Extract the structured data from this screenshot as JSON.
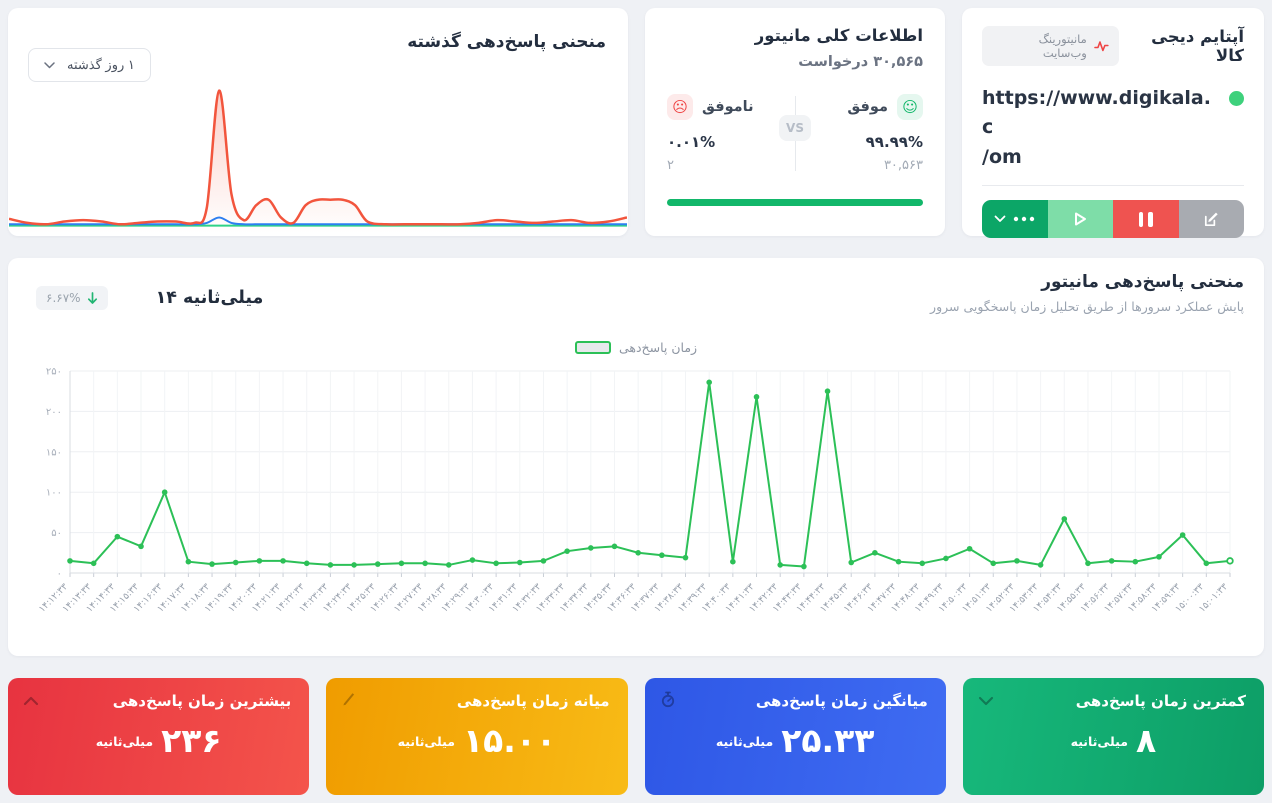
{
  "monitor_card": {
    "title": "آپتایم دیجی کالا",
    "badge_label": "مانیتورینگ وب‌سایت",
    "url_line1": "https://www.digikala.c",
    "url_line2": "/om",
    "status_color": "#3ed17c"
  },
  "overview_card": {
    "title": "اطلاعات کلی مانیتور",
    "subtitle": "۳۰,۵۶۵ درخواست",
    "success_label": "موفق",
    "success_percent": "۹۹.۹۹%",
    "success_count": "۳۰,۵۶۳",
    "failed_label": "ناموفق",
    "failed_percent": "۰.۰۱%",
    "failed_count": "۲",
    "vs_label": "VS",
    "bar_color": "#12b76a"
  },
  "history_card": {
    "title": "منحنی پاسخ‌دهی گذشته",
    "range_selector_label": "۱ روز گذشته"
  },
  "response_card": {
    "title": "منحنی پاسخ‌دهی مانیتور",
    "subtitle": "پایش عملکرد سرورها از طریق تحلیل زمان پاسخگویی سرور",
    "current_value": "۱۴ میلی‌ثانیه",
    "change_percent": "۶.۶۷%",
    "legend_label": "زمان پاسخ‌دهی"
  },
  "icons": {
    "smiley": "☺",
    "frown": "☹"
  },
  "stats_cards": [
    {
      "title": "کمترین زمان پاسخ‌دهی",
      "value": "۸",
      "unit": "میلی‌ثانیه",
      "icon": "chevron-down",
      "gradient": [
        "#17b87b",
        "#0d9e66"
      ]
    },
    {
      "title": "میانگین زمان پاسخ‌دهی",
      "value": "۲۵.۳۳",
      "unit": "میلی‌ثانیه",
      "icon": "stopwatch",
      "gradient": [
        "#2e57e6",
        "#3f6cf2"
      ]
    },
    {
      "title": "میانه زمان پاسخ‌دهی",
      "value": "۱۵.۰۰",
      "unit": "میلی‌ثانیه",
      "icon": "pencil",
      "gradient": [
        "#f09c00",
        "#f8bb16"
      ]
    },
    {
      "title": "بیشترین زمان پاسخ‌دهی",
      "value": "۲۳۶",
      "unit": "میلی‌ثانیه",
      "icon": "chevron-up",
      "gradient": [
        "#e73340",
        "#f4544b"
      ]
    }
  ],
  "chart_data": [
    {
      "name": "monitor-response-chart",
      "type": "line",
      "title": "منحنی پاسخ‌دهی مانیتور",
      "legend": [
        "زمان پاسخ‌دهی"
      ],
      "legend_position": "top-center",
      "grid": true,
      "xlabel": "",
      "ylabel": "",
      "ylim": [
        0,
        250
      ],
      "yticks": [
        0,
        50,
        100,
        150,
        200,
        250
      ],
      "line_color": "#2cc057",
      "x": [
        "۱۴:۱۲:۳۳",
        "۱۴:۱۳:۳۳",
        "۱۴:۱۴:۳۳",
        "۱۴:۱۵:۳۳",
        "۱۴:۱۶:۳۳",
        "۱۴:۱۷:۳۳",
        "۱۴:۱۸:۳۳",
        "۱۴:۱۹:۳۳",
        "۱۴:۲۰:۳۳",
        "۱۴:۲۱:۳۳",
        "۱۴:۲۲:۳۳",
        "۱۴:۲۳:۳۳",
        "۱۴:۲۴:۳۳",
        "۱۴:۲۵:۳۳",
        "۱۴:۲۶:۳۳",
        "۱۴:۲۷:۳۳",
        "۱۴:۲۸:۳۳",
        "۱۴:۲۹:۳۳",
        "۱۴:۳۰:۳۳",
        "۱۴:۳۱:۳۳",
        "۱۴:۳۲:۳۳",
        "۱۴:۳۳:۳۳",
        "۱۴:۳۴:۳۳",
        "۱۴:۳۵:۳۳",
        "۱۴:۳۶:۳۳",
        "۱۴:۳۷:۳۳",
        "۱۴:۳۸:۳۳",
        "۱۴:۳۹:۳۳",
        "۱۴:۴۰:۳۳",
        "۱۴:۴۱:۳۳",
        "۱۴:۴۲:۳۳",
        "۱۴:۴۳:۳۳",
        "۱۴:۴۴:۳۳",
        "۱۴:۴۵:۳۳",
        "۱۴:۴۶:۳۳",
        "۱۴:۴۷:۳۳",
        "۱۴:۴۸:۳۳",
        "۱۴:۴۹:۳۳",
        "۱۴:۵۰:۳۳",
        "۱۴:۵۱:۳۳",
        "۱۴:۵۲:۳۳",
        "۱۴:۵۳:۳۳",
        "۱۴:۵۴:۳۳",
        "۱۴:۵۵:۳۳",
        "۱۴:۵۶:۳۳",
        "۱۴:۵۷:۳۳",
        "۱۴:۵۸:۳۳",
        "۱۴:۵۹:۳۳",
        "۱۵:۰۰:۳۳",
        "۱۵:۰۱:۳۳"
      ],
      "series": [
        {
          "name": "زمان پاسخ‌دهی",
          "values": [
            15,
            12,
            45,
            33,
            100,
            14,
            11,
            13,
            15,
            15,
            12,
            10,
            10,
            11,
            12,
            12,
            10,
            16,
            12,
            13,
            15,
            27,
            31,
            33,
            25,
            22,
            19,
            236,
            14,
            218,
            10,
            8,
            225,
            13,
            25,
            14,
            12,
            18,
            30,
            12,
            15,
            10,
            67,
            12,
            15,
            14,
            20,
            47,
            12,
            15
          ]
        }
      ]
    },
    {
      "name": "history-response-chart",
      "type": "area",
      "note": "no axes shown; values are relative units",
      "ylim": [
        0,
        110
      ],
      "x_percent": [
        0,
        3,
        6,
        9,
        12,
        15,
        18,
        21,
        24,
        27,
        30,
        32,
        34,
        36,
        38,
        40,
        42,
        44,
        46,
        48,
        50,
        52,
        54,
        56,
        58,
        61,
        64,
        67,
        70,
        73,
        76,
        79,
        82,
        85,
        88,
        91,
        94,
        97,
        100
      ],
      "series": [
        {
          "name": "primary",
          "color": "#f2553d",
          "values": [
            6,
            3,
            2,
            4,
            5,
            4,
            2,
            3,
            4,
            4,
            3,
            14,
            100,
            24,
            5,
            16,
            20,
            7,
            3,
            16,
            20,
            20,
            20,
            16,
            4,
            2,
            2,
            2,
            2,
            2,
            3,
            5,
            4,
            3,
            4,
            5,
            3,
            4,
            7
          ]
        },
        {
          "name": "secondary",
          "color": "#2d7ff0",
          "values": [
            2,
            2,
            2,
            2,
            2,
            2,
            2,
            2,
            2,
            2,
            2,
            3,
            7,
            3,
            2,
            2,
            2,
            2,
            2,
            2,
            2,
            2,
            2,
            2,
            2,
            2,
            2,
            2,
            2,
            2,
            2,
            2,
            2,
            2,
            2,
            2,
            2,
            2,
            2
          ]
        },
        {
          "name": "baseline",
          "color": "#2fd387",
          "values": [
            1,
            1,
            1,
            1,
            1,
            1,
            1,
            1,
            1,
            1,
            1,
            1,
            1,
            1,
            1,
            1,
            1,
            1,
            1,
            1,
            1,
            1,
            1,
            1,
            1,
            1,
            1,
            1,
            1,
            1,
            1,
            1,
            1,
            1,
            1,
            1,
            1,
            1,
            1
          ]
        }
      ]
    }
  ]
}
